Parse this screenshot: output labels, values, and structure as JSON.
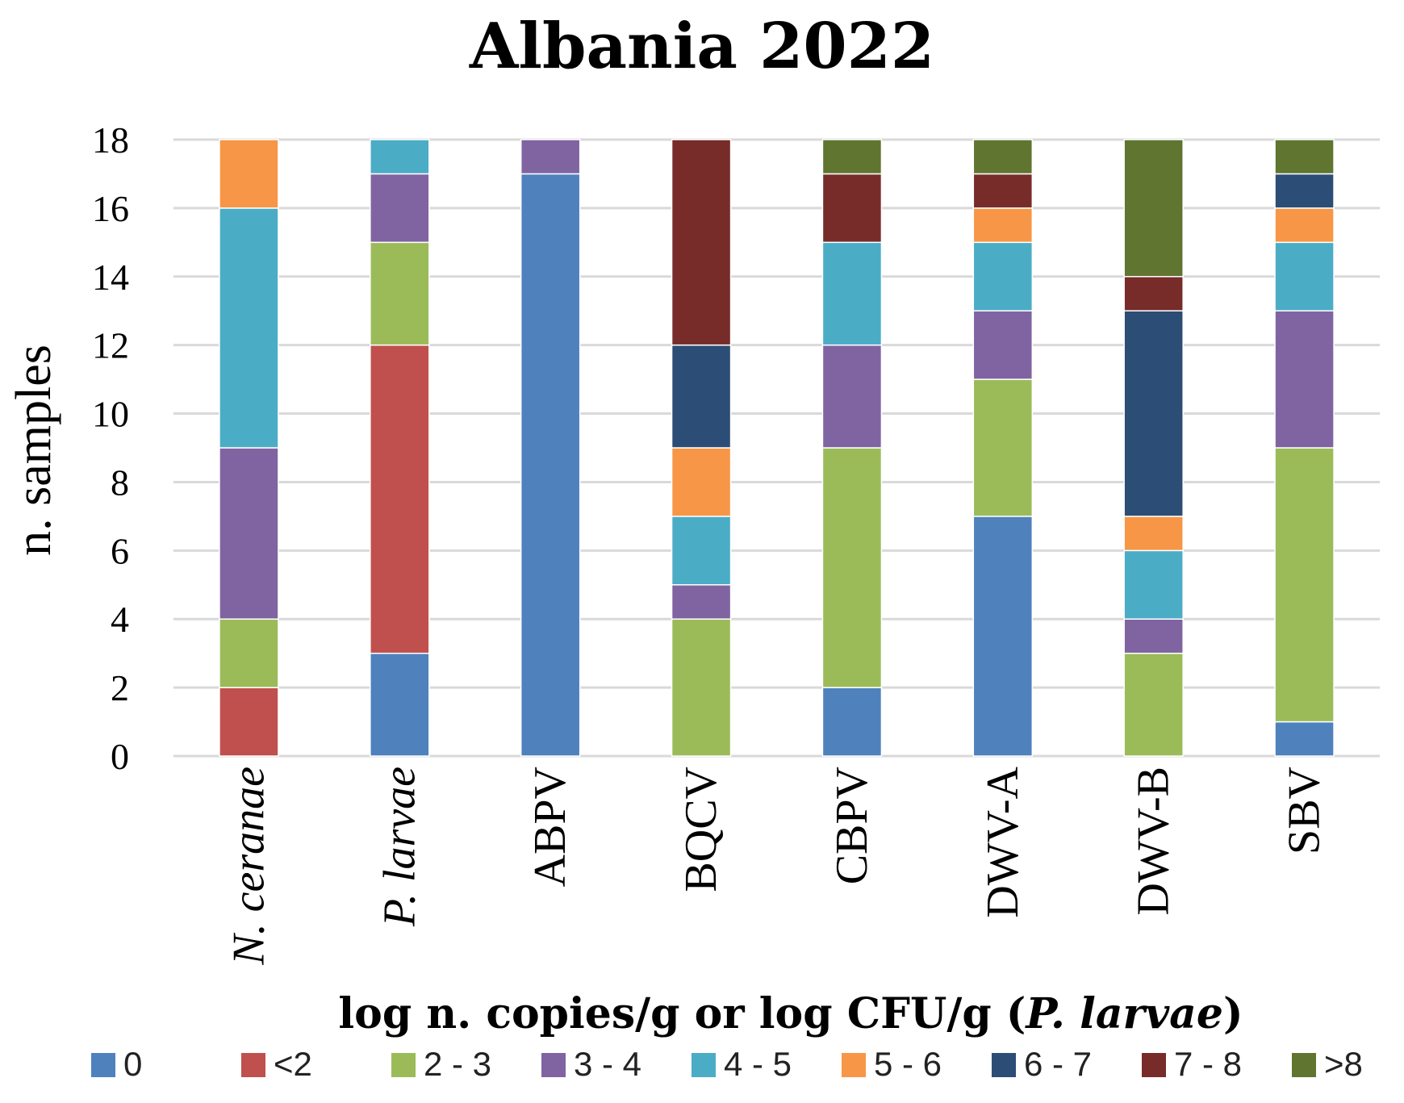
{
  "chart_data": {
    "type": "bar",
    "stacked": true,
    "title": "Albania 2022",
    "ylabel": "n. samples",
    "xlabel": "log n. copies/g or log CFU/g (P. larvae)",
    "xlabel_parts": [
      "log n. copies/g or log CFU/g (",
      "P. larvae",
      ")"
    ],
    "ylim": [
      0,
      18
    ],
    "yticks": [
      0,
      2,
      4,
      6,
      8,
      10,
      12,
      14,
      16,
      18
    ],
    "grid": true,
    "legend_position": "bottom",
    "categories": [
      "N. ceranae",
      "P. larvae",
      "ABPV",
      "BQCV",
      "CBPV",
      "DWV-A",
      "DWV-B",
      "SBV"
    ],
    "categories_italic": [
      true,
      true,
      false,
      false,
      false,
      false,
      false,
      false
    ],
    "series": [
      {
        "name": "0",
        "color": "#4F81BD",
        "values": [
          0,
          3,
          17,
          0,
          2,
          7,
          0,
          1
        ]
      },
      {
        "name": "<2",
        "color": "#C0504D",
        "values": [
          2,
          9,
          0,
          0,
          0,
          0,
          0,
          0
        ]
      },
      {
        "name": "2 - 3",
        "color": "#9BBB59",
        "values": [
          2,
          3,
          0,
          4,
          7,
          4,
          3,
          8
        ]
      },
      {
        "name": "3 - 4",
        "color": "#8064A2",
        "values": [
          5,
          2,
          1,
          1,
          3,
          2,
          1,
          4
        ]
      },
      {
        "name": "4 - 5",
        "color": "#4BACC6",
        "values": [
          7,
          1,
          0,
          2,
          3,
          2,
          2,
          2
        ]
      },
      {
        "name": "5 - 6",
        "color": "#F79646",
        "values": [
          2,
          0,
          0,
          2,
          0,
          1,
          1,
          1
        ]
      },
      {
        "name": "6 - 7",
        "color": "#2C4D75",
        "values": [
          0,
          0,
          0,
          3,
          0,
          0,
          6,
          1
        ]
      },
      {
        "name": "7 - 8",
        "color": "#772C2A",
        "values": [
          0,
          0,
          0,
          6,
          2,
          1,
          1,
          0
        ]
      },
      {
        "name": ">8",
        "color": "#5F7530",
        "values": [
          0,
          0,
          0,
          0,
          1,
          1,
          4,
          1
        ]
      }
    ]
  }
}
